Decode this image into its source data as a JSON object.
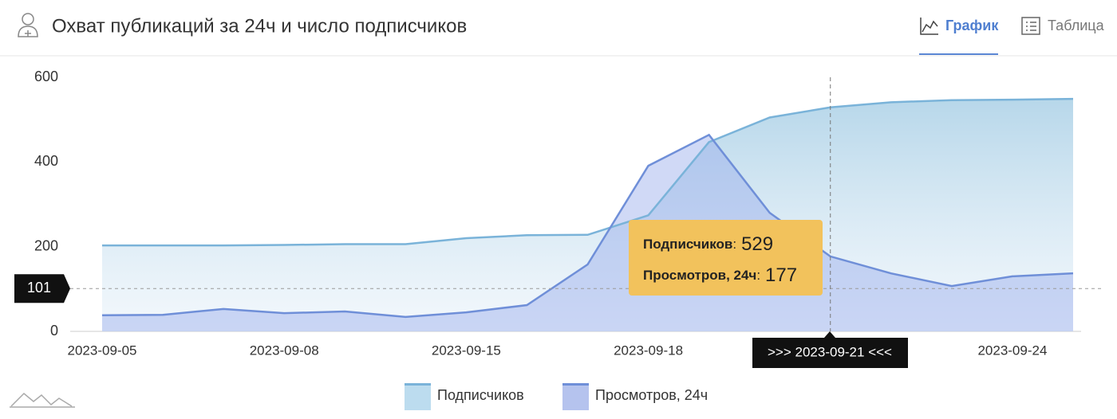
{
  "header": {
    "title": "Охват публикаций за 24ч и число подписчиков",
    "tabs": [
      "График",
      "Таблица"
    ]
  },
  "chart_data": {
    "type": "line",
    "categories": [
      "2023-09-05",
      null,
      null,
      "2023-09-08",
      null,
      null,
      "2023-09-15",
      null,
      null,
      "2023-09-18",
      null,
      null,
      null,
      null,
      null,
      "2023-09-24",
      null
    ],
    "series": [
      {
        "name": "Подписчиков",
        "color": "#7ab3d9",
        "values": [
          203,
          203,
          203,
          204,
          206,
          206,
          220,
          227,
          228,
          274,
          447,
          505,
          529,
          541,
          546,
          547,
          549
        ]
      },
      {
        "name": "Просмотров, 24ч",
        "color": "#6f8fd8",
        "values": [
          38,
          39,
          53,
          43,
          47,
          34,
          45,
          62,
          158,
          391,
          464,
          280,
          177,
          137,
          107,
          130,
          137
        ]
      }
    ],
    "ylim": [
      0,
      600
    ],
    "yticks": [
      0,
      200,
      400,
      600
    ],
    "reference_line": {
      "value": 101,
      "label": "101"
    },
    "crosshair": {
      "index": 12,
      "label": ">>> 2023-09-21 <<<"
    },
    "tooltip_separator": ":",
    "legend": "bottom"
  }
}
